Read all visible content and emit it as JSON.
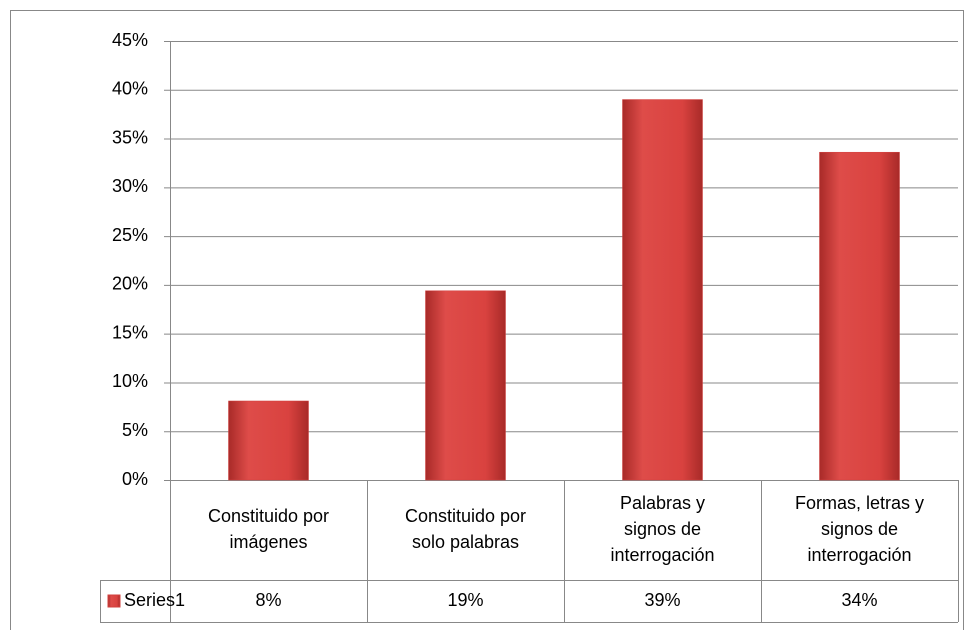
{
  "chart_data": {
    "type": "bar",
    "categories": [
      [
        "Constituido por",
        "imágenes"
      ],
      [
        "Constituido por",
        "solo palabras"
      ],
      [
        "Palabras y",
        "signos de",
        "interrogación"
      ],
      [
        "Formas, letras y",
        "signos de",
        "interrogación"
      ]
    ],
    "series": [
      {
        "name": "Series1",
        "color": "#d2403e",
        "values": [
          8.1,
          19.4,
          39,
          33.6
        ],
        "value_labels": [
          "8%",
          "19%",
          "39%",
          "34%"
        ]
      }
    ],
    "ylim": [
      0,
      45
    ],
    "yticks": [
      {
        "value": 0,
        "label": "0%"
      },
      {
        "value": 5,
        "label": "5%"
      },
      {
        "value": 10,
        "label": "10%"
      },
      {
        "value": 15,
        "label": "15%"
      },
      {
        "value": 20,
        "label": "20%"
      },
      {
        "value": 25,
        "label": "25%"
      },
      {
        "value": 30,
        "label": "30%"
      },
      {
        "value": 35,
        "label": "35%"
      },
      {
        "value": 40,
        "label": "40%"
      },
      {
        "value": 45,
        "label": "45%"
      }
    ],
    "grid": true,
    "data_table": true
  }
}
